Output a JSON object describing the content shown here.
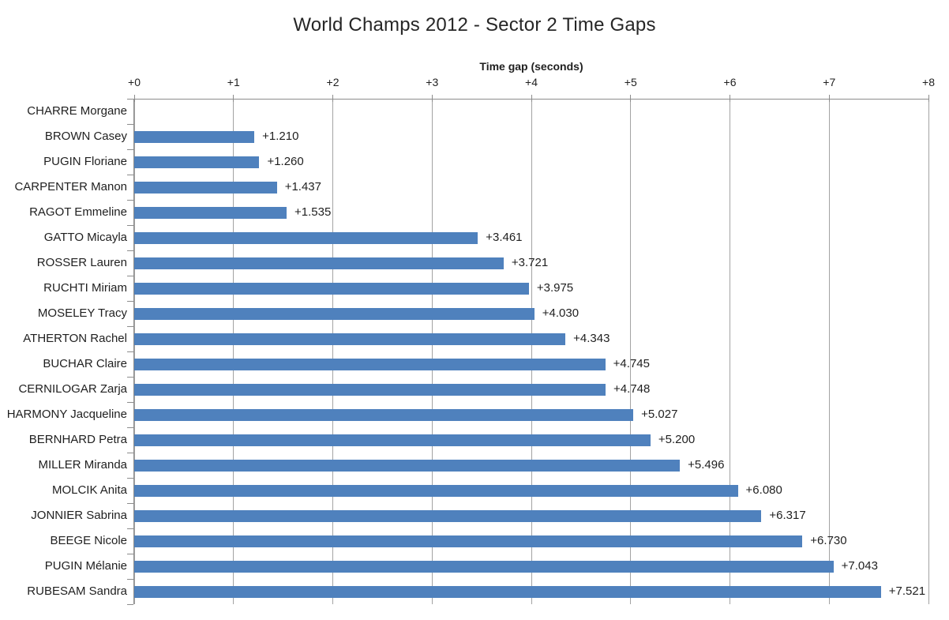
{
  "chart_data": {
    "type": "bar",
    "orientation": "horizontal",
    "title": "World Champs 2012 - Sector 2 Time Gaps",
    "xlabel": "Time gap (seconds)",
    "ylabel": "",
    "categories": [
      "CHARRE Morgane",
      "BROWN Casey",
      "PUGIN Floriane",
      "CARPENTER Manon",
      "RAGOT Emmeline",
      "GATTO Micayla",
      "ROSSER Lauren",
      "RUCHTI Miriam",
      "MOSELEY Tracy",
      "ATHERTON Rachel",
      "BUCHAR Claire",
      "CERNILOGAR Zarja",
      "HARMONY Jacqueline",
      "BERNHARD Petra",
      "MILLER Miranda",
      "MOLCIK Anita",
      "JONNIER Sabrina",
      "BEEGE Nicole",
      "PUGIN Mélanie",
      "RUBESAM Sandra"
    ],
    "values": [
      0,
      1.21,
      1.26,
      1.437,
      1.535,
      3.461,
      3.721,
      3.975,
      4.03,
      4.343,
      4.745,
      4.748,
      5.027,
      5.2,
      5.496,
      6.08,
      6.317,
      6.73,
      7.043,
      7.521
    ],
    "data_labels": [
      "",
      "+1.210",
      "+1.260",
      "+1.437",
      "+1.535",
      "+3.461",
      "+3.721",
      "+3.975",
      "+4.030",
      "+4.343",
      "+4.745",
      "+4.748",
      "+5.027",
      "+5.200",
      "+5.496",
      "+6.080",
      "+6.317",
      "+6.730",
      "+7.043",
      "+7.521"
    ],
    "x_tick_labels": [
      "+0",
      "+1",
      "+2",
      "+3",
      "+4",
      "+5",
      "+6",
      "+7",
      "+8"
    ],
    "xlim": [
      0,
      8
    ],
    "grid": true,
    "legend": false,
    "colors": {
      "bar_fill": "#4F81BD",
      "gridline": "#A3A3A3",
      "axis_line": "#8C8C8C",
      "text": "#1F1F1F"
    }
  }
}
